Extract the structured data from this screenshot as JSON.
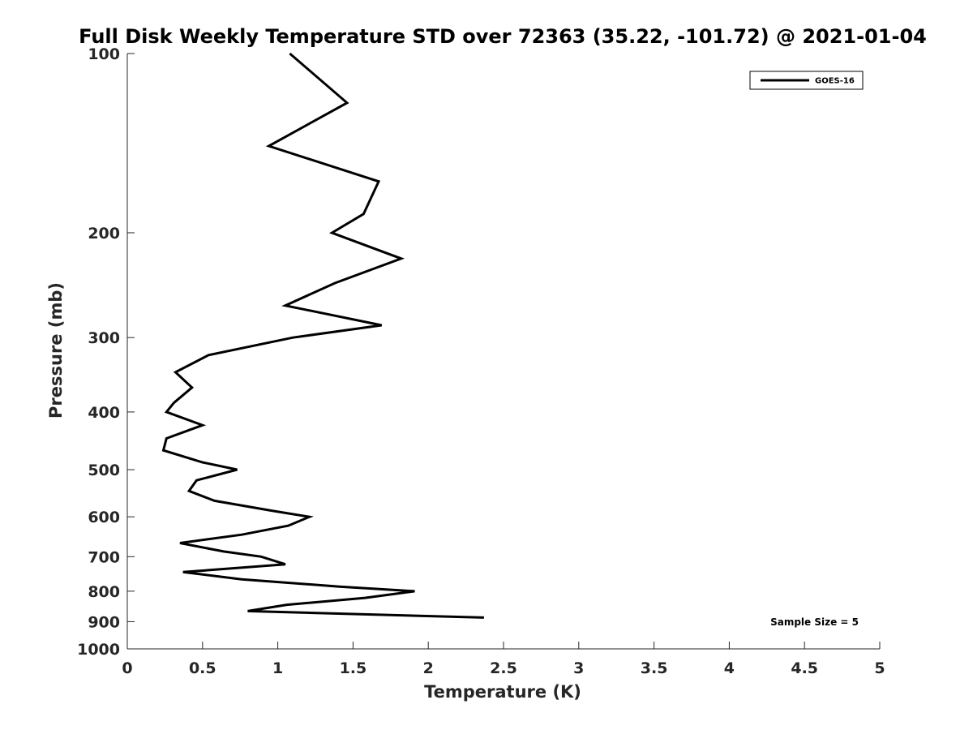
{
  "chart_data": {
    "type": "line",
    "title": "Full Disk Weekly Temperature STD over 72363 (35.22, -101.72) @ 2021-01-04",
    "xlabel": "Temperature (K)",
    "ylabel": "Pressure (mb)",
    "xlim": [
      0,
      5
    ],
    "ylim": [
      100,
      1000
    ],
    "y_scale": "log",
    "y_reversed": true,
    "x_ticks": [
      "0",
      "0.5",
      "1",
      "1.5",
      "2",
      "2.5",
      "3",
      "3.5",
      "4",
      "4.5",
      "5"
    ],
    "y_ticks": [
      "100",
      "200",
      "300",
      "400",
      "500",
      "600",
      "700",
      "800",
      "900",
      "1000"
    ],
    "grid": false,
    "legend_position": "top-right",
    "annotation": "Sample Size = 5",
    "series": [
      {
        "name": "GOES-16",
        "color": "#000000",
        "points": [
          [
            1.08,
            100
          ],
          [
            1.46,
            121
          ],
          [
            0.94,
            143
          ],
          [
            1.67,
            164
          ],
          [
            1.57,
            186
          ],
          [
            1.36,
            200
          ],
          [
            1.82,
            221
          ],
          [
            1.38,
            243
          ],
          [
            1.05,
            265
          ],
          [
            1.69,
            286
          ],
          [
            1.1,
            300
          ],
          [
            0.54,
            321
          ],
          [
            0.32,
            343
          ],
          [
            0.43,
            364
          ],
          [
            0.31,
            386
          ],
          [
            0.26,
            400
          ],
          [
            0.5,
            421
          ],
          [
            0.26,
            443
          ],
          [
            0.24,
            464
          ],
          [
            0.5,
            486
          ],
          [
            0.73,
            500
          ],
          [
            0.46,
            521
          ],
          [
            0.41,
            543
          ],
          [
            0.58,
            564
          ],
          [
            0.96,
            586
          ],
          [
            1.21,
            600
          ],
          [
            1.07,
            621
          ],
          [
            0.76,
            643
          ],
          [
            0.35,
            664
          ],
          [
            0.64,
            686
          ],
          [
            0.89,
            700
          ],
          [
            1.05,
            721
          ],
          [
            0.37,
            743
          ],
          [
            0.76,
            764
          ],
          [
            1.41,
            786
          ],
          [
            1.91,
            800
          ],
          [
            1.58,
            821
          ],
          [
            1.06,
            843
          ],
          [
            0.8,
            864
          ],
          [
            2.37,
            886
          ]
        ]
      }
    ]
  }
}
